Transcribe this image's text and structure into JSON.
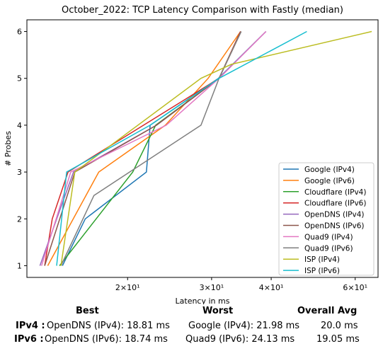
{
  "chart_data": {
    "type": "line",
    "title": "October_2022: TCP Latency Comparison with Fastly (median)",
    "xlabel": "Latency in ms",
    "ylabel": "# Probes",
    "xscale": "log",
    "xlim": [
      12.3,
      67
    ],
    "ylim": [
      0.75,
      6.25
    ],
    "x_ticks": [
      {
        "value": 20,
        "label": "2×10¹"
      },
      {
        "value": 30,
        "label": "3×10¹"
      },
      {
        "value": 40,
        "label": "4×10¹"
      },
      {
        "value": 60,
        "label": "6×10¹"
      }
    ],
    "y_ticks": [
      1,
      2,
      3,
      4,
      5,
      6
    ],
    "legend_position": "lower-right",
    "series": [
      {
        "name": "Google (IPv4)",
        "color": "#1f77b4",
        "x": [
          14.6,
          16.3,
          21.9,
          22.3,
          31.0,
          39.0
        ],
        "y": [
          1,
          2,
          3,
          4,
          5,
          6
        ]
      },
      {
        "name": "Google (IPv6)",
        "color": "#ff7f0e",
        "x": [
          13.6,
          17.4,
          24.0,
          29.5,
          34.5
        ],
        "y": [
          1,
          3,
          4,
          5,
          6
        ]
      },
      {
        "name": "Cloudflare (IPv4)",
        "color": "#2ca02c",
        "x": [
          14.4,
          20.5,
          22.9,
          31.1,
          34.5
        ],
        "y": [
          1,
          3,
          4,
          5,
          6
        ]
      },
      {
        "name": "Cloudflare (IPv6)",
        "color": "#d62728",
        "x": [
          13.4,
          13.9,
          15.0,
          31.1,
          34.5
        ],
        "y": [
          1,
          2,
          3,
          5,
          6
        ]
      },
      {
        "name": "OpenDNS (IPv4)",
        "color": "#9467bd",
        "x": [
          13.1,
          15.4,
          23.0,
          31.1,
          39.0
        ],
        "y": [
          1,
          3,
          4,
          5,
          6
        ]
      },
      {
        "name": "OpenDNS (IPv6)",
        "color": "#8c564b",
        "x": [
          13.4,
          15.5,
          23.0,
          31.1,
          34.6
        ],
        "y": [
          1,
          3,
          4,
          5,
          6
        ]
      },
      {
        "name": "Quad9 (IPv4)",
        "color": "#e377c2",
        "x": [
          13.2,
          15.2,
          24.1,
          31.1,
          39.0
        ],
        "y": [
          1,
          3,
          4,
          5,
          6
        ]
      },
      {
        "name": "Quad9 (IPv6)",
        "color": "#7f7f7f",
        "x": [
          14.5,
          17.0,
          28.5,
          31.1,
          34.6
        ],
        "y": [
          1,
          2.5,
          4,
          5,
          6
        ]
      },
      {
        "name": "ISP (IPv4)",
        "color": "#bcbd22",
        "x": [
          14.5,
          15.5,
          28.5,
          33.0,
          65.0
        ],
        "y": [
          1,
          3,
          5,
          5.3,
          6
        ]
      },
      {
        "name": "ISP (IPv6)",
        "color": "#17becf",
        "x": [
          14.2,
          14.9,
          22.3,
          31.1,
          47.5
        ],
        "y": [
          1,
          3,
          4,
          5,
          6
        ]
      }
    ]
  },
  "stats": {
    "headers": {
      "best": "Best",
      "worst": "Worst",
      "avg": "Overall Avg"
    },
    "rows": [
      {
        "label": "IPv4 :",
        "best": "OpenDNS (IPv4): 18.81 ms",
        "worst": "Google (IPv4): 21.98 ms",
        "avg": "20.0 ms"
      },
      {
        "label": "IPv6 :",
        "best": "OpenDNS (IPv6): 18.74 ms",
        "worst": "Quad9 (IPv6): 24.13 ms",
        "avg": "19.05 ms"
      }
    ]
  }
}
